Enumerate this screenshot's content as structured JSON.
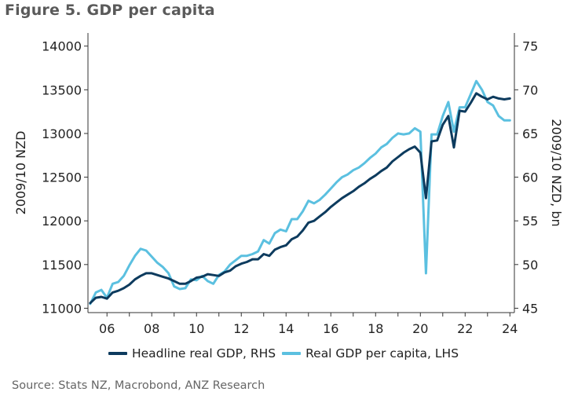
{
  "figure_title": "Figure 5.  GDP per capita",
  "source": "Source: Stats NZ, Macrobond, ANZ Research",
  "colors": {
    "headline": "#0d3b5e",
    "per_capita": "#5bc0e0",
    "axis": "#333333"
  },
  "chart_data": {
    "type": "line",
    "title": "GDP per capita",
    "xlim": [
      2005.15,
      2024.2
    ],
    "x_ticks": [
      2006,
      2008,
      2010,
      2012,
      2014,
      2016,
      2018,
      2020,
      2022,
      2024
    ],
    "x_tick_labels": [
      "06",
      "08",
      "10",
      "12",
      "14",
      "16",
      "18",
      "20",
      "22",
      "24"
    ],
    "left_axis": {
      "label": "2009/10 NZD",
      "ylim": [
        10950,
        14150
      ],
      "ticks": [
        11000,
        11500,
        12000,
        12500,
        13000,
        13500,
        14000
      ]
    },
    "right_axis": {
      "label": "2009/10 NZD, bn",
      "ylim": [
        44.5,
        76.5
      ],
      "ticks": [
        45,
        50,
        55,
        60,
        65,
        70,
        75
      ]
    },
    "legend_position": "bottom",
    "series": [
      {
        "name": "Headline real GDP, RHS",
        "axis": "right",
        "x": [
          2005.25,
          2005.5,
          2005.75,
          2006,
          2006.25,
          2006.5,
          2006.75,
          2007,
          2007.25,
          2007.5,
          2007.75,
          2008,
          2008.25,
          2008.5,
          2008.75,
          2009,
          2009.25,
          2009.5,
          2009.75,
          2010,
          2010.25,
          2010.5,
          2010.75,
          2011,
          2011.25,
          2011.5,
          2011.75,
          2012,
          2012.25,
          2012.5,
          2012.75,
          2013,
          2013.25,
          2013.5,
          2013.75,
          2014,
          2014.25,
          2014.5,
          2014.75,
          2015,
          2015.25,
          2015.5,
          2015.75,
          2016,
          2016.25,
          2016.5,
          2016.75,
          2017,
          2017.25,
          2017.5,
          2017.75,
          2018,
          2018.25,
          2018.5,
          2018.75,
          2019,
          2019.25,
          2019.5,
          2019.75,
          2020,
          2020.25,
          2020.5,
          2020.75,
          2021,
          2021.25,
          2021.5,
          2021.75,
          2022,
          2022.25,
          2022.5,
          2022.75,
          2023,
          2023.25,
          2023.5,
          2023.75,
          2024
        ],
        "values": [
          45.6,
          46.2,
          46.3,
          46.1,
          46.8,
          47.0,
          47.3,
          47.7,
          48.3,
          48.7,
          49.0,
          49.0,
          48.8,
          48.6,
          48.4,
          48.1,
          47.8,
          47.8,
          48.1,
          48.5,
          48.6,
          48.9,
          48.8,
          48.7,
          49.1,
          49.3,
          49.8,
          50.1,
          50.3,
          50.6,
          50.6,
          51.2,
          51.0,
          51.7,
          52.0,
          52.2,
          52.9,
          53.2,
          53.9,
          54.8,
          55.0,
          55.5,
          56.0,
          56.6,
          57.1,
          57.6,
          58.0,
          58.4,
          58.9,
          59.3,
          59.8,
          60.2,
          60.7,
          61.1,
          61.8,
          62.3,
          62.8,
          63.2,
          63.5,
          62.8,
          57.6,
          64.1,
          64.2,
          66.0,
          67.0,
          63.4,
          67.6,
          67.5,
          68.5,
          69.6,
          69.2,
          68.9,
          69.2,
          69.0,
          68.9,
          69.0
        ]
      },
      {
        "name": "Real GDP per capita, LHS",
        "axis": "left",
        "x": [
          2005.25,
          2005.5,
          2005.75,
          2006,
          2006.25,
          2006.5,
          2006.75,
          2007,
          2007.25,
          2007.5,
          2007.75,
          2008,
          2008.25,
          2008.5,
          2008.75,
          2009,
          2009.25,
          2009.5,
          2009.75,
          2010,
          2010.25,
          2010.5,
          2010.75,
          2011,
          2011.25,
          2011.5,
          2011.75,
          2012,
          2012.25,
          2012.5,
          2012.75,
          2013,
          2013.25,
          2013.5,
          2013.75,
          2014,
          2014.25,
          2014.5,
          2014.75,
          2015,
          2015.25,
          2015.5,
          2015.75,
          2016,
          2016.25,
          2016.5,
          2016.75,
          2017,
          2017.25,
          2017.5,
          2017.75,
          2018,
          2018.25,
          2018.5,
          2018.75,
          2019,
          2019.25,
          2019.5,
          2019.75,
          2020,
          2020.25,
          2020.5,
          2020.75,
          2021,
          2021.25,
          2021.5,
          2021.75,
          2022,
          2022.25,
          2022.5,
          2022.75,
          2023,
          2023.25,
          2023.5,
          2023.75,
          2024
        ],
        "values": [
          11050,
          11180,
          11210,
          11120,
          11280,
          11300,
          11370,
          11490,
          11600,
          11680,
          11660,
          11590,
          11520,
          11470,
          11400,
          11250,
          11220,
          11230,
          11330,
          11320,
          11370,
          11310,
          11280,
          11380,
          11420,
          11500,
          11550,
          11600,
          11600,
          11620,
          11650,
          11780,
          11740,
          11860,
          11900,
          11880,
          12020,
          12020,
          12110,
          12230,
          12200,
          12240,
          12300,
          12370,
          12440,
          12500,
          12530,
          12580,
          12610,
          12660,
          12720,
          12770,
          12840,
          12880,
          12950,
          13000,
          12990,
          13000,
          13060,
          13020,
          11400,
          12990,
          12990,
          13200,
          13360,
          13020,
          13300,
          13300,
          13450,
          13600,
          13500,
          13360,
          13320,
          13200,
          13150,
          13150
        ]
      }
    ]
  }
}
